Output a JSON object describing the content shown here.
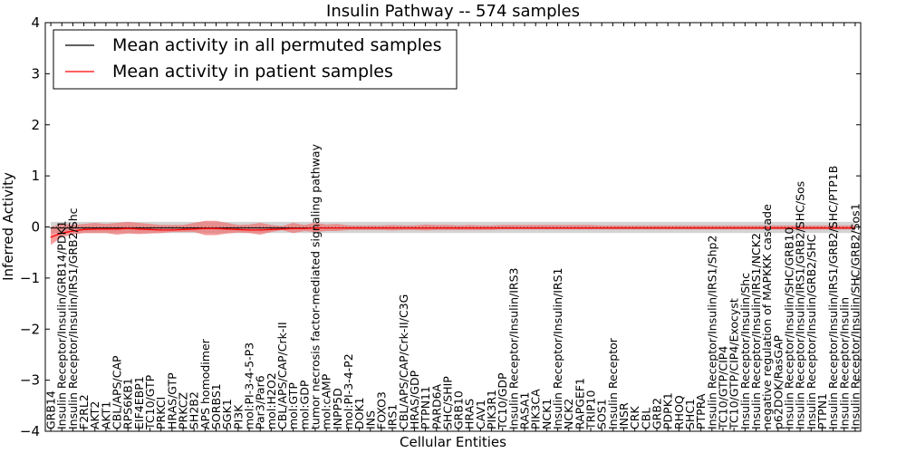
{
  "chart_data": {
    "type": "line",
    "title": "Insulin Pathway -- 574 samples",
    "xlabel": "Cellular Entities",
    "ylabel": "Inferred Activity",
    "ylim": [
      -4,
      4
    ],
    "yticks": [
      4,
      3,
      2,
      1,
      0,
      -1,
      -2,
      -3,
      -4
    ],
    "ytick_labels": [
      "4",
      "3",
      "2",
      "1",
      "0",
      "−1",
      "−2",
      "−3",
      "−4"
    ],
    "legend": {
      "placement": "top-left",
      "entries": [
        {
          "label": "Mean activity in all permuted samples",
          "color": "#000000"
        },
        {
          "label": "Mean activity in patient samples",
          "color": "#ff0000"
        }
      ]
    },
    "categories": [
      "GRB14",
      "Insulin Receptor/Insulin/GRB14/PDK1",
      "Insulin Receptor/Insulin/IRS1/GRB2/Shc",
      "F2RL2",
      "AKT2",
      "AKT1",
      "CBL/APS/CAP",
      "RPS6KB1",
      "EIF4EBP1",
      "TC10/GTP",
      "PRKCI",
      "HRAS/GTP",
      "PRKCZ",
      "SH2B2",
      "APS homodimer",
      "SORBS1",
      "SGK1",
      "PI3K",
      "mol:PI-3-4-5-P3",
      "Par3/Par6",
      "mol:H2O2",
      "CBL/APS/CAP/Crk-II",
      "mol:GTP",
      "mol:GDP",
      "tumor necrosis factor-mediated signaling pathway",
      "mol:cAMP",
      "INPP5D",
      "mol:PI-3-4-P2",
      "DOK1",
      "INS",
      "FOXO3",
      "IRS1",
      "CBL/APS/CAP/Crk-II/C3G",
      "HRAS/GDP",
      "PTPN11",
      "PARD6A",
      "SHC/SHIP",
      "GRB10",
      "HRAS",
      "CAV1",
      "PIK3R1",
      "TC10/GDP",
      "Insulin Receptor/Insulin/IRS3",
      "RASA1",
      "PIK3CA",
      "NCK1",
      "Insulin Receptor/Insulin/IRS1",
      "NCK2",
      "RAPGEF1",
      "TRIP10",
      "SOS1",
      "Insulin Receptor",
      "INSR",
      "CRK",
      "CBL",
      "GRB2",
      "PDPK1",
      "RHOQ",
      "SHC1",
      "PTPRA",
      "Insulin Receptor/Insulin/IRS1/Shp2",
      "TC10/GTP/CIP4",
      "TC10/GTP/CIP4/Exocyst",
      "Insulin Receptor/Insulin/Shc",
      "Insulin Receptor/Insulin/IRS1/NCK2",
      "negative regulation of MAPKKK cascade",
      "p62DOK/RasGAP",
      "Insulin Receptor/Insulin/SHC/GRB10",
      "Insulin Receptor/Insulin/IRS1/GRB2/SHC/Sos",
      "Insulin Receptor/Insulin/GRB2/SHC",
      "PTPN1",
      "Insulin Receptor/Insulin/IRS1/GRB2/SHC/PTP1B",
      "Insulin Receptor/Insulin",
      "Insulin Receptor/Insulin/SHC/GRB2/Sos1"
    ],
    "series": [
      {
        "name": "Mean activity in all permuted samples",
        "color": "#000000",
        "values": [
          -0.02,
          -0.02,
          -0.02,
          -0.02,
          -0.02,
          -0.02,
          -0.02,
          -0.02,
          -0.02,
          -0.02,
          -0.02,
          -0.02,
          -0.02,
          -0.02,
          -0.02,
          -0.02,
          -0.02,
          -0.02,
          -0.02,
          -0.02,
          -0.02,
          -0.02,
          -0.02,
          -0.02,
          -0.02,
          -0.02,
          -0.02,
          -0.02,
          -0.02,
          -0.02,
          -0.02,
          -0.02,
          -0.02,
          -0.02,
          -0.02,
          -0.02,
          -0.02,
          -0.02,
          -0.02,
          -0.02,
          -0.02,
          -0.02,
          -0.02,
          -0.02,
          -0.02,
          -0.02,
          -0.02,
          -0.02,
          -0.02,
          -0.02,
          -0.02,
          -0.02,
          -0.02,
          -0.02,
          -0.02,
          -0.02,
          -0.02,
          -0.02,
          -0.02,
          -0.02,
          -0.02,
          -0.02,
          -0.02,
          -0.02,
          -0.02,
          -0.02,
          -0.02,
          -0.02,
          -0.02,
          -0.02,
          -0.02,
          -0.02,
          -0.02,
          -0.02
        ],
        "band_low": [
          -0.12,
          -0.12,
          -0.12,
          -0.12,
          -0.12,
          -0.12,
          -0.12,
          -0.12,
          -0.12,
          -0.12,
          -0.12,
          -0.12,
          -0.12,
          -0.12,
          -0.12,
          -0.12,
          -0.12,
          -0.12,
          -0.12,
          -0.12,
          -0.12,
          -0.12,
          -0.12,
          -0.12,
          -0.12,
          -0.12,
          -0.12,
          -0.12,
          -0.12,
          -0.12,
          -0.12,
          -0.12,
          -0.12,
          -0.12,
          -0.12,
          -0.12,
          -0.12,
          -0.12,
          -0.12,
          -0.12,
          -0.12,
          -0.12,
          -0.12,
          -0.12,
          -0.12,
          -0.12,
          -0.12,
          -0.12,
          -0.12,
          -0.12,
          -0.12,
          -0.12,
          -0.12,
          -0.12,
          -0.12,
          -0.12,
          -0.12,
          -0.12,
          -0.12,
          -0.12,
          -0.12,
          -0.12,
          -0.12,
          -0.12,
          -0.12,
          -0.12,
          -0.12,
          -0.12,
          -0.12,
          -0.12,
          -0.12,
          -0.12,
          -0.12,
          -0.12
        ],
        "band_high": [
          0.1,
          0.1,
          0.1,
          0.1,
          0.1,
          0.1,
          0.1,
          0.1,
          0.1,
          0.1,
          0.1,
          0.1,
          0.1,
          0.1,
          0.1,
          0.1,
          0.1,
          0.1,
          0.1,
          0.1,
          0.1,
          0.1,
          0.1,
          0.1,
          0.1,
          0.1,
          0.1,
          0.1,
          0.1,
          0.1,
          0.1,
          0.1,
          0.1,
          0.1,
          0.1,
          0.1,
          0.1,
          0.1,
          0.1,
          0.1,
          0.1,
          0.1,
          0.1,
          0.1,
          0.1,
          0.1,
          0.1,
          0.1,
          0.1,
          0.1,
          0.1,
          0.1,
          0.1,
          0.1,
          0.1,
          0.1,
          0.1,
          0.1,
          0.1,
          0.1,
          0.1,
          0.1,
          0.1,
          0.1,
          0.1,
          0.1,
          0.1,
          0.1,
          0.1,
          0.1,
          0.1,
          0.1,
          0.1,
          0.1
        ]
      },
      {
        "name": "Mean activity in patient samples",
        "color": "#ff0000",
        "values": [
          -0.2,
          -0.12,
          -0.08,
          -0.05,
          -0.04,
          -0.04,
          -0.04,
          -0.03,
          -0.04,
          -0.05,
          -0.06,
          -0.06,
          -0.05,
          -0.04,
          -0.03,
          -0.03,
          -0.04,
          -0.05,
          -0.06,
          -0.06,
          -0.05,
          -0.04,
          -0.03,
          -0.03,
          -0.02,
          -0.02,
          -0.02,
          -0.02,
          -0.02,
          -0.02,
          -0.02,
          -0.02,
          -0.02,
          -0.02,
          -0.02,
          -0.02,
          -0.02,
          -0.02,
          -0.02,
          -0.02,
          -0.02,
          -0.02,
          -0.02,
          -0.02,
          -0.02,
          -0.02,
          -0.02,
          -0.02,
          -0.02,
          -0.02,
          -0.02,
          -0.02,
          -0.02,
          -0.02,
          -0.02,
          -0.02,
          -0.02,
          -0.02,
          -0.02,
          -0.02,
          -0.02,
          -0.02,
          -0.02,
          -0.02,
          -0.02,
          -0.02,
          -0.02,
          -0.02,
          -0.02,
          -0.02,
          -0.02,
          -0.02,
          -0.02,
          -0.02
        ],
        "band_low": [
          -0.35,
          -0.2,
          -0.15,
          -0.12,
          -0.12,
          -0.12,
          -0.15,
          -0.13,
          -0.14,
          -0.13,
          -0.12,
          -0.1,
          -0.1,
          -0.1,
          -0.16,
          -0.16,
          -0.13,
          -0.11,
          -0.12,
          -0.15,
          -0.1,
          -0.06,
          -0.12,
          -0.08,
          -0.1,
          -0.08,
          -0.08,
          -0.06,
          -0.06,
          -0.06,
          -0.06,
          -0.07,
          -0.06,
          -0.06,
          -0.07,
          -0.06,
          -0.06,
          -0.06,
          -0.06,
          -0.06,
          -0.06,
          -0.05,
          -0.05,
          -0.05,
          -0.05,
          -0.05,
          -0.05,
          -0.05,
          -0.05,
          -0.05,
          -0.05,
          -0.05,
          -0.05,
          -0.05,
          -0.05,
          -0.05,
          -0.05,
          -0.05,
          -0.05,
          -0.05,
          -0.05,
          -0.05,
          -0.05,
          -0.05,
          -0.05,
          -0.05,
          -0.05,
          -0.05,
          -0.05,
          -0.05,
          -0.05,
          -0.05,
          -0.05,
          -0.05
        ],
        "band_high": [
          0.0,
          0.06,
          0.04,
          0.06,
          0.08,
          0.06,
          0.08,
          0.1,
          0.08,
          0.06,
          0.04,
          0.04,
          0.04,
          0.08,
          0.12,
          0.12,
          0.08,
          0.04,
          0.05,
          0.08,
          0.04,
          0.02,
          0.08,
          0.04,
          0.08,
          0.05,
          0.06,
          0.03,
          0.03,
          0.03,
          0.03,
          0.04,
          0.03,
          0.03,
          0.05,
          0.04,
          0.04,
          0.03,
          0.04,
          0.03,
          0.03,
          0.04,
          0.04,
          0.04,
          0.04,
          0.04,
          0.04,
          0.04,
          0.04,
          0.04,
          0.03,
          0.03,
          0.03,
          0.03,
          0.03,
          0.03,
          0.03,
          0.03,
          0.03,
          0.03,
          0.03,
          0.03,
          0.03,
          0.03,
          0.03,
          0.03,
          0.03,
          0.03,
          0.03,
          0.03,
          0.03,
          0.03,
          0.03,
          0.03
        ]
      }
    ]
  }
}
